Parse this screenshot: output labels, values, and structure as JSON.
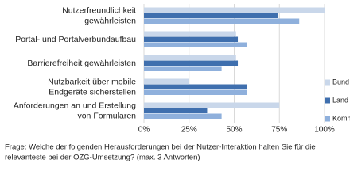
{
  "chart_data": {
    "type": "hbar",
    "categories": [
      [
        "Nutzerfreundlichkeit",
        "gewährleisten"
      ],
      [
        "Portal- und Portalverbundaufbau"
      ],
      [
        "Barrierefreiheit gewährleisten"
      ],
      [
        "Nutzbarkeit über mobile",
        "Endgeräte sicherstellen"
      ],
      [
        "Anforderungen an und Erstellung",
        "von Formularen"
      ]
    ],
    "series": [
      {
        "name": "Bund",
        "color": "#c9d7ea",
        "values": [
          100,
          51,
          51,
          25,
          75
        ]
      },
      {
        "name": "Land",
        "color": "#3f6fae",
        "values": [
          74,
          52,
          52,
          57,
          35
        ]
      },
      {
        "name": "Kommune",
        "color": "#8fb0dc",
        "values": [
          86,
          57,
          43,
          57,
          43
        ]
      }
    ],
    "xlim": [
      0,
      100
    ],
    "xticks": [
      {
        "value": 0,
        "label": "0%"
      },
      {
        "value": 25,
        "label": "25%"
      },
      {
        "value": 50,
        "label": "50%"
      },
      {
        "value": 75,
        "label": "75%"
      },
      {
        "value": 100,
        "label": "100%"
      }
    ],
    "grid": true,
    "footnote": [
      "Frage: Welche der folgenden Herausforderungen bei der Nutzer-Interaktion halten Sie für die",
      "relevanteste bei der OZG-Umsetzung? (max. 3 Antworten)"
    ]
  }
}
